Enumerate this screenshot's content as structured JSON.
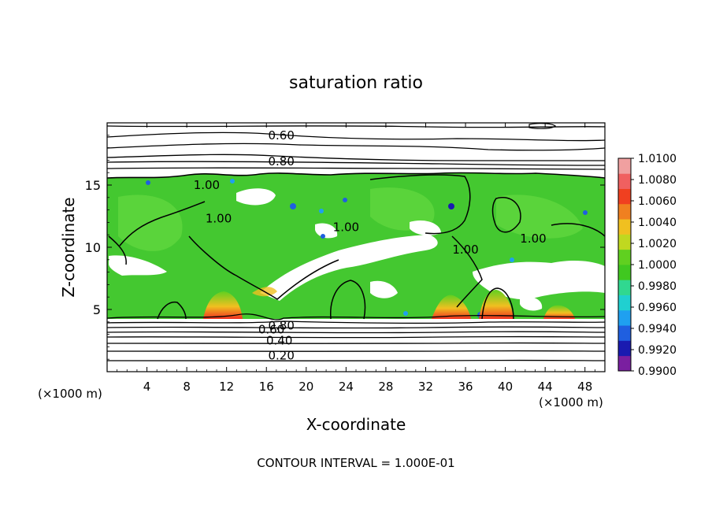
{
  "chart_data": {
    "type": "heatmap",
    "title": "saturation ratio",
    "xlabel": "X-coordinate",
    "ylabel": "Z-coordinate",
    "x_unit": "(×1000 m)",
    "y_unit": "(×1000 m)",
    "x_ticks": [
      4,
      8,
      12,
      16,
      20,
      24,
      28,
      32,
      36,
      40,
      44,
      48
    ],
    "y_ticks": [
      5,
      10,
      15
    ],
    "xlim": [
      0,
      50
    ],
    "ylim": [
      0,
      20
    ],
    "footer": "CONTOUR INTERVAL = 1.000E-01",
    "colorbar": {
      "labels": [
        "1.0100",
        "1.0080",
        "1.0060",
        "1.0040",
        "1.0020",
        "1.0000",
        "0.9980",
        "0.9960",
        "0.9940",
        "0.9920",
        "0.9900"
      ],
      "min": 0.99,
      "max": 1.01,
      "colors": [
        "#7a1fa0",
        "#1a1ab0",
        "#1f5fe0",
        "#1fa0f0",
        "#20d0d0",
        "#30d890",
        "#40c820",
        "#60d020",
        "#c0d820",
        "#f0c020",
        "#f08020",
        "#f04020",
        "#f06060",
        "#f0a0a0"
      ]
    },
    "contour_labels": [
      {
        "text": "0.60",
        "x": 17.5,
        "z": 19.0
      },
      {
        "text": "0.80",
        "x": 17.5,
        "z": 16.9
      },
      {
        "text": "1.00",
        "x": 10.0,
        "z": 15.0
      },
      {
        "text": "1.00",
        "x": 11.2,
        "z": 12.3
      },
      {
        "text": "1.00",
        "x": 24.0,
        "z": 11.6
      },
      {
        "text": "1.00",
        "x": 36.0,
        "z": 9.8
      },
      {
        "text": "1.00",
        "x": 42.8,
        "z": 10.7
      },
      {
        "text": "0.80",
        "x": 17.5,
        "z": 3.7
      },
      {
        "text": "0.60",
        "x": 16.5,
        "z": 3.4
      },
      {
        "text": "0.40",
        "x": 17.3,
        "z": 2.5
      },
      {
        "text": "0.20",
        "x": 17.5,
        "z": 1.3
      }
    ]
  }
}
